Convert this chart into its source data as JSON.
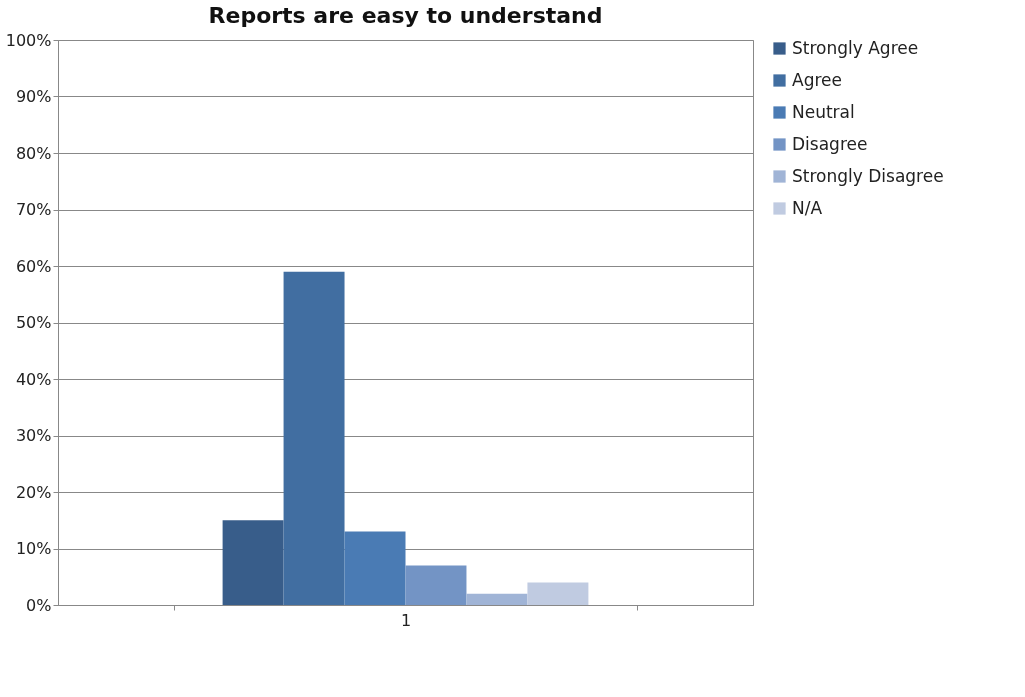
{
  "chart_data": {
    "type": "bar",
    "title": "Reports are easy to understand",
    "categories": [
      "1"
    ],
    "series": [
      {
        "name": "Strongly Agree",
        "color": "#385d8a",
        "values": [
          15
        ]
      },
      {
        "name": "Agree",
        "color": "#416ea1",
        "values": [
          59
        ]
      },
      {
        "name": "Neutral",
        "color": "#4a7bb4",
        "values": [
          13
        ]
      },
      {
        "name": "Disagree",
        "color": "#7394c5",
        "values": [
          7
        ]
      },
      {
        "name": "Strongly Disagree",
        "color": "#a0b4d6",
        "values": [
          2
        ]
      },
      {
        "name": "N/A",
        "color": "#c0cbe1",
        "values": [
          4
        ]
      }
    ],
    "ylim": [
      0,
      100
    ],
    "yticks": [
      {
        "value": 0,
        "label": "0%"
      },
      {
        "value": 10,
        "label": "10%"
      },
      {
        "value": 20,
        "label": "20%"
      },
      {
        "value": 30,
        "label": "30%"
      },
      {
        "value": 40,
        "label": "40%"
      },
      {
        "value": 50,
        "label": "50%"
      },
      {
        "value": 60,
        "label": "60%"
      },
      {
        "value": 70,
        "label": "70%"
      },
      {
        "value": 80,
        "label": "80%"
      },
      {
        "value": 90,
        "label": "90%"
      },
      {
        "value": 100,
        "label": "100%"
      }
    ],
    "grid": "y",
    "legend": "right"
  }
}
